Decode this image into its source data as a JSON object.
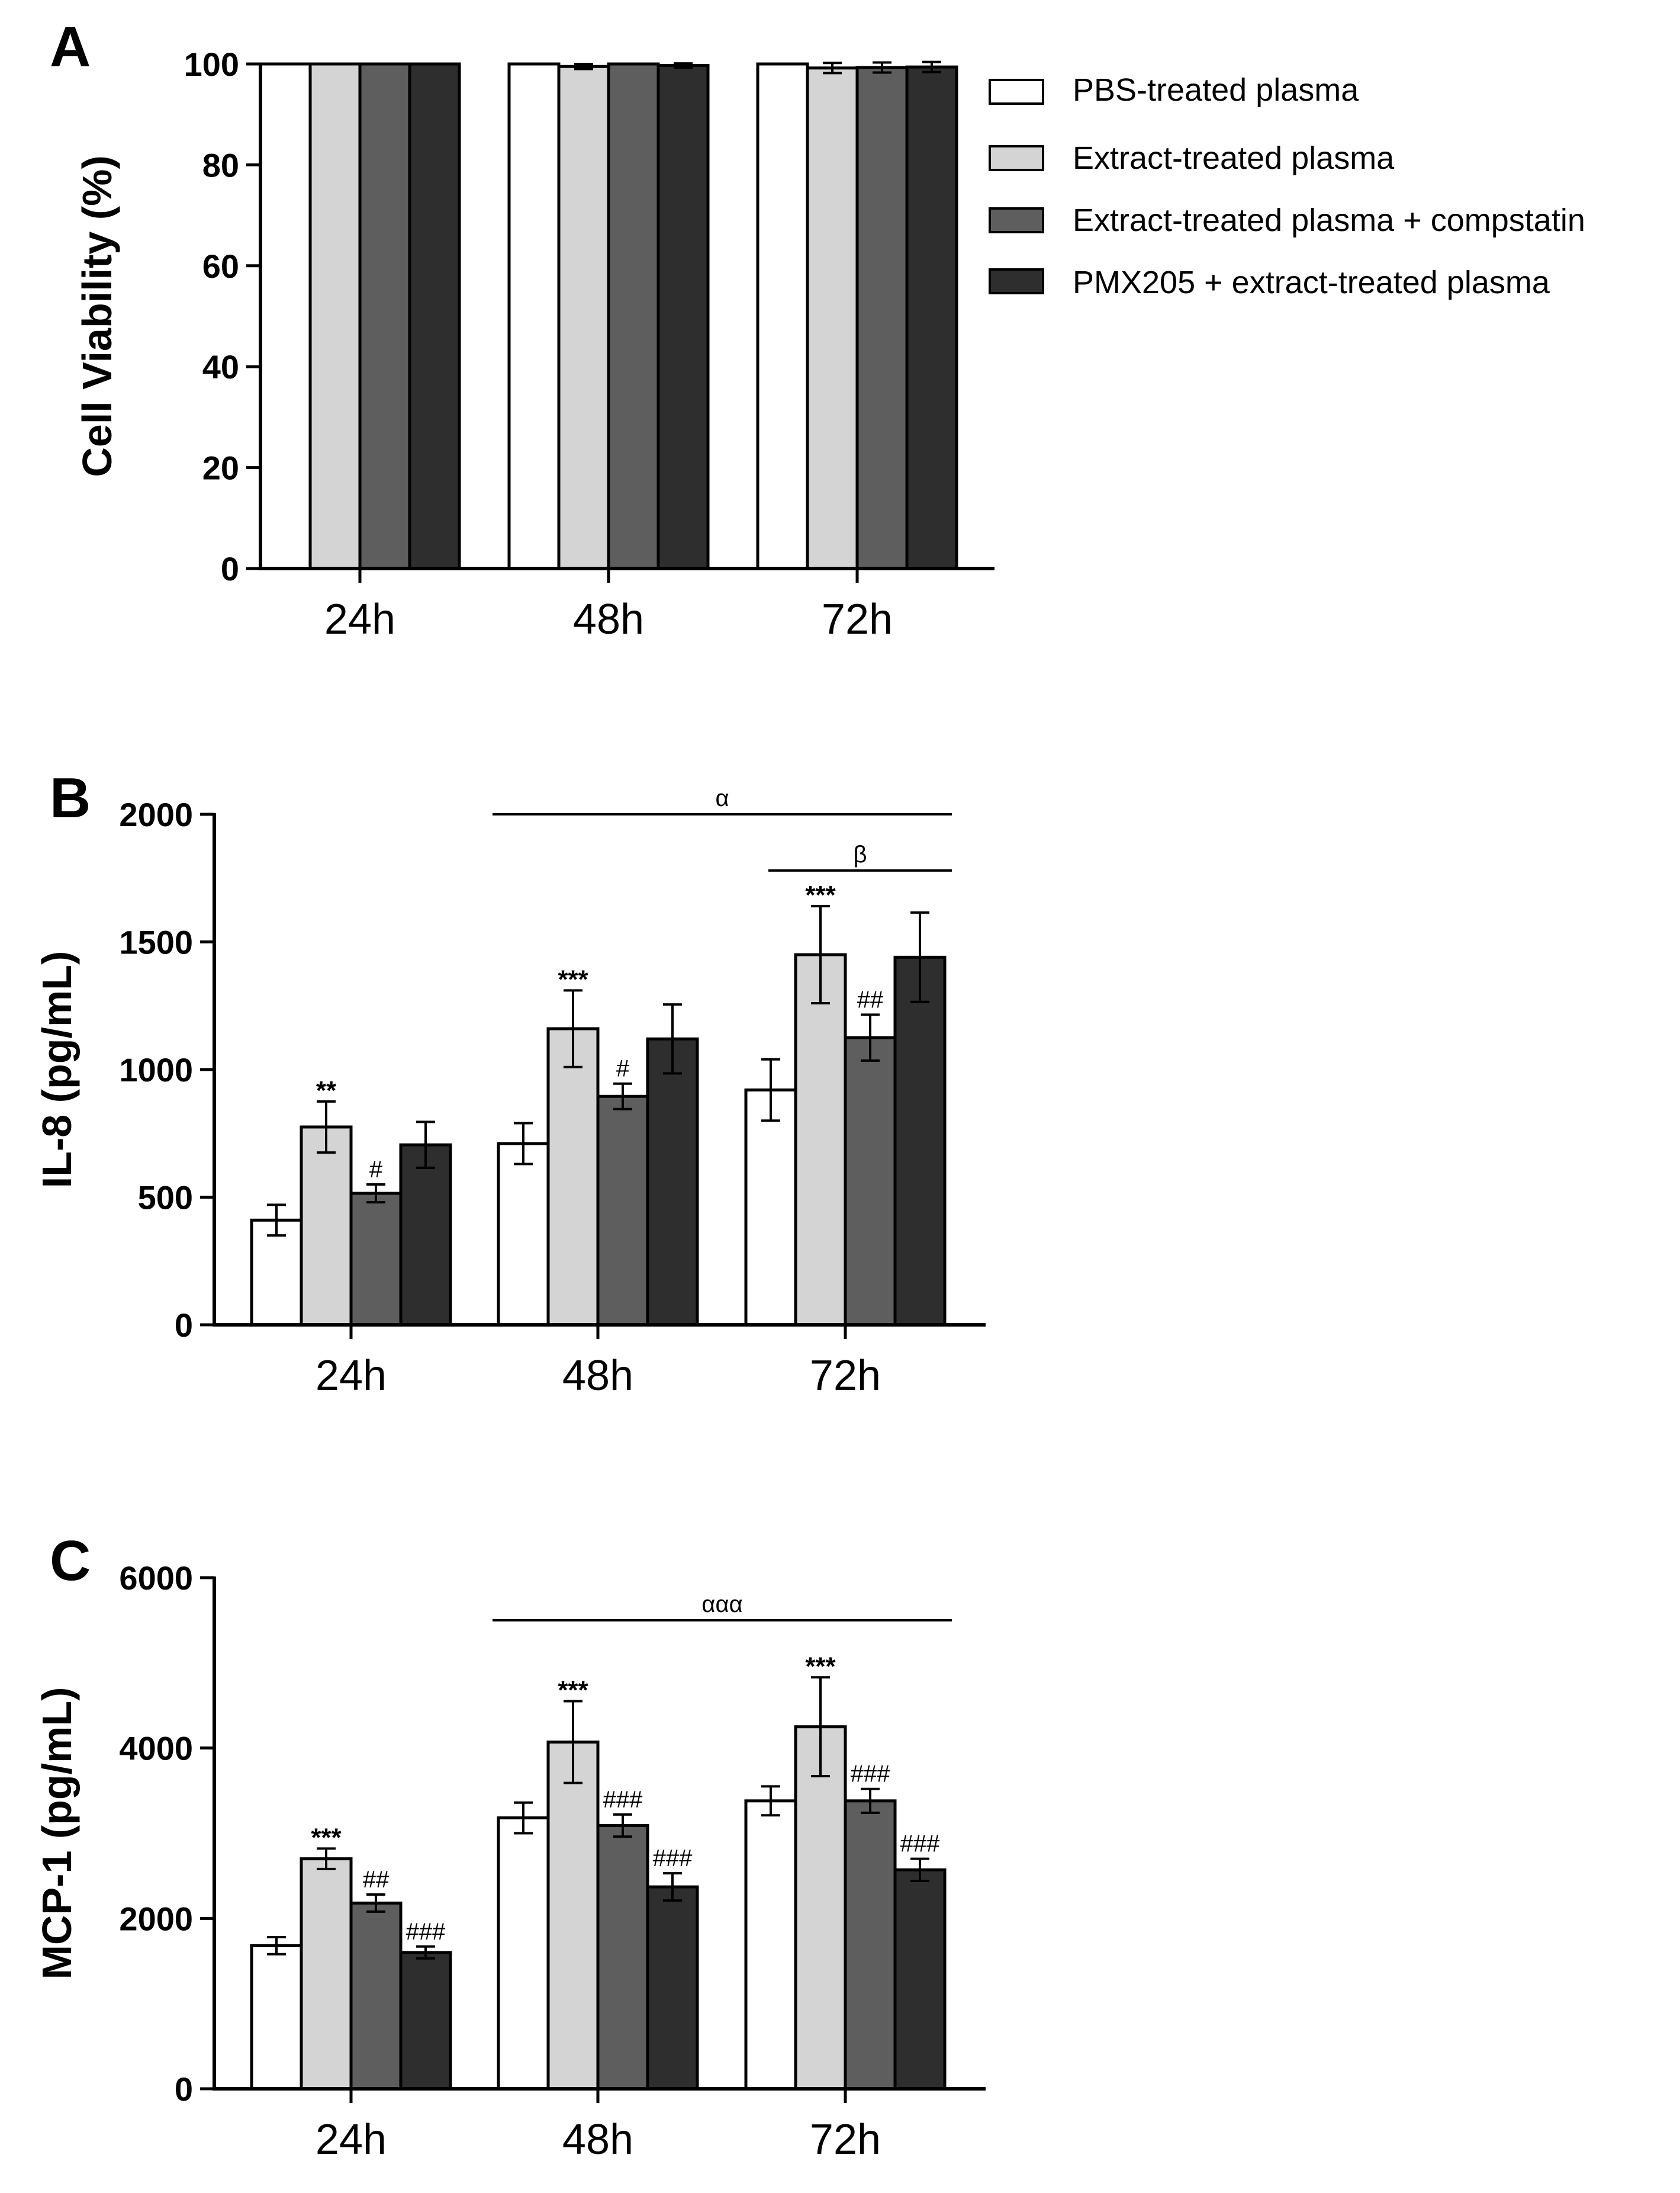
{
  "colors": {
    "series": [
      "#ffffff",
      "#d4d4d4",
      "#5e5e5e",
      "#2e2e2e"
    ],
    "stroke": "#000000"
  },
  "legend": {
    "entries": [
      "PBS-treated plasma",
      "Extract-treated plasma",
      "Extract-treated plasma + compstatin",
      "PMX205 + extract-treated plasma"
    ]
  },
  "chart_data": [
    {
      "panel": "A",
      "type": "bar",
      "title": "",
      "xlabel": "",
      "ylabel": "Cell Viability (%)",
      "categories": [
        "24h",
        "48h",
        "72h"
      ],
      "ylim": [
        0,
        100
      ],
      "yticks": [
        0,
        20,
        40,
        60,
        80,
        100
      ],
      "series": [
        {
          "name": "PBS-treated plasma",
          "values": [
            100,
            100,
            100
          ],
          "errors": [
            0,
            0,
            0
          ],
          "sig": [
            "",
            "",
            ""
          ]
        },
        {
          "name": "Extract-treated plasma",
          "values": [
            100,
            99.5,
            99.2
          ],
          "errors": [
            0,
            0.5,
            1.0
          ],
          "sig": [
            "",
            "",
            ""
          ]
        },
        {
          "name": "Extract-treated plasma + compstatin",
          "values": [
            100,
            100,
            99.3
          ],
          "errors": [
            0,
            0,
            1.0
          ],
          "sig": [
            "",
            "",
            ""
          ]
        },
        {
          "name": "PMX205 + extract-treated plasma",
          "values": [
            100,
            99.7,
            99.4
          ],
          "errors": [
            0,
            0.4,
            1.0
          ],
          "sig": [
            "",
            "",
            ""
          ]
        }
      ],
      "brackets": []
    },
    {
      "panel": "B",
      "type": "bar",
      "title": "",
      "xlabel": "",
      "ylabel": "IL-8 (pg/mL)",
      "categories": [
        "24h",
        "48h",
        "72h"
      ],
      "ylim": [
        0,
        2000
      ],
      "yticks": [
        0,
        500,
        1000,
        1500,
        2000
      ],
      "series": [
        {
          "name": "PBS-treated plasma",
          "values": [
            410,
            710,
            920
          ],
          "errors": [
            60,
            80,
            120
          ],
          "sig": [
            "",
            "",
            ""
          ]
        },
        {
          "name": "Extract-treated plasma",
          "values": [
            775,
            1160,
            1450
          ],
          "errors": [
            100,
            150,
            190
          ],
          "sig": [
            "**",
            "***",
            "***"
          ]
        },
        {
          "name": "Extract-treated plasma + compstatin",
          "values": [
            515,
            895,
            1125
          ],
          "errors": [
            35,
            50,
            90
          ],
          "sig": [
            "#",
            "#",
            "##"
          ]
        },
        {
          "name": "PMX205 + extract-treated plasma",
          "values": [
            705,
            1120,
            1440
          ],
          "errors": [
            90,
            135,
            175
          ],
          "sig": [
            "",
            "",
            ""
          ]
        }
      ],
      "brackets": [
        {
          "label": "α",
          "from_category": "48h",
          "to_category": "72h",
          "value": 2000
        },
        {
          "label": "β",
          "from_category": "72h",
          "to_category": "72h",
          "value": 1780
        }
      ]
    },
    {
      "panel": "C",
      "type": "bar",
      "title": "",
      "xlabel": "",
      "ylabel": "MCP-1 (pg/mL)",
      "categories": [
        "24h",
        "48h",
        "72h"
      ],
      "ylim": [
        0,
        6000
      ],
      "yticks": [
        0,
        2000,
        4000,
        6000
      ],
      "series": [
        {
          "name": "PBS-treated plasma",
          "values": [
            1680,
            3180,
            3380
          ],
          "errors": [
            100,
            180,
            170
          ],
          "sig": [
            "",
            "",
            ""
          ]
        },
        {
          "name": "Extract-treated plasma",
          "values": [
            2700,
            4070,
            4250
          ],
          "errors": [
            120,
            480,
            580
          ],
          "sig": [
            "***",
            "***",
            "***"
          ]
        },
        {
          "name": "Extract-treated plasma + compstatin",
          "values": [
            2180,
            3090,
            3380
          ],
          "errors": [
            100,
            130,
            140
          ],
          "sig": [
            "##",
            "###",
            "###"
          ]
        },
        {
          "name": "PMX205 + extract-treated plasma",
          "values": [
            1600,
            2370,
            2570
          ],
          "errors": [
            70,
            160,
            130
          ],
          "sig": [
            "###",
            "###",
            "###"
          ]
        }
      ],
      "brackets": [
        {
          "label": "ααα",
          "from_category": "48h",
          "to_category": "72h",
          "value": 5500
        }
      ]
    }
  ]
}
